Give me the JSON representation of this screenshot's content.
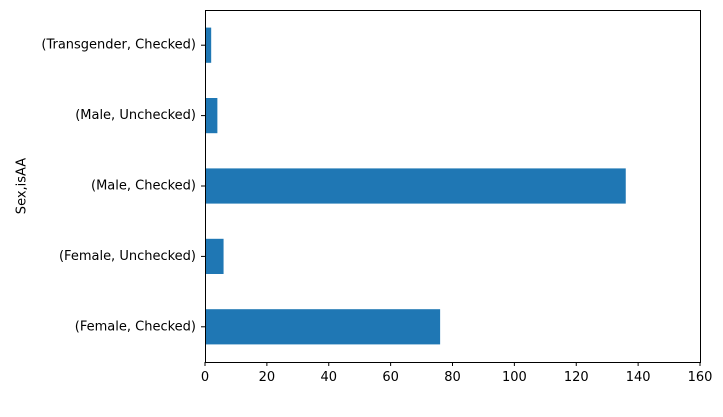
{
  "chart_data": {
    "type": "bar",
    "orientation": "horizontal",
    "categories": [
      "(Female, Checked)",
      "(Female, Unchecked)",
      "(Male, Checked)",
      "(Male, Unchecked)",
      "(Transgender, Checked)"
    ],
    "values": [
      76,
      6,
      136,
      4,
      2
    ],
    "title": "",
    "xlabel": "",
    "ylabel": "Sex,isAA",
    "xlim": [
      0,
      160
    ],
    "xticks": [
      0,
      20,
      40,
      60,
      80,
      100,
      120,
      140,
      160
    ],
    "grid": false,
    "legend": "none",
    "bar_color": "#1f77b4"
  }
}
